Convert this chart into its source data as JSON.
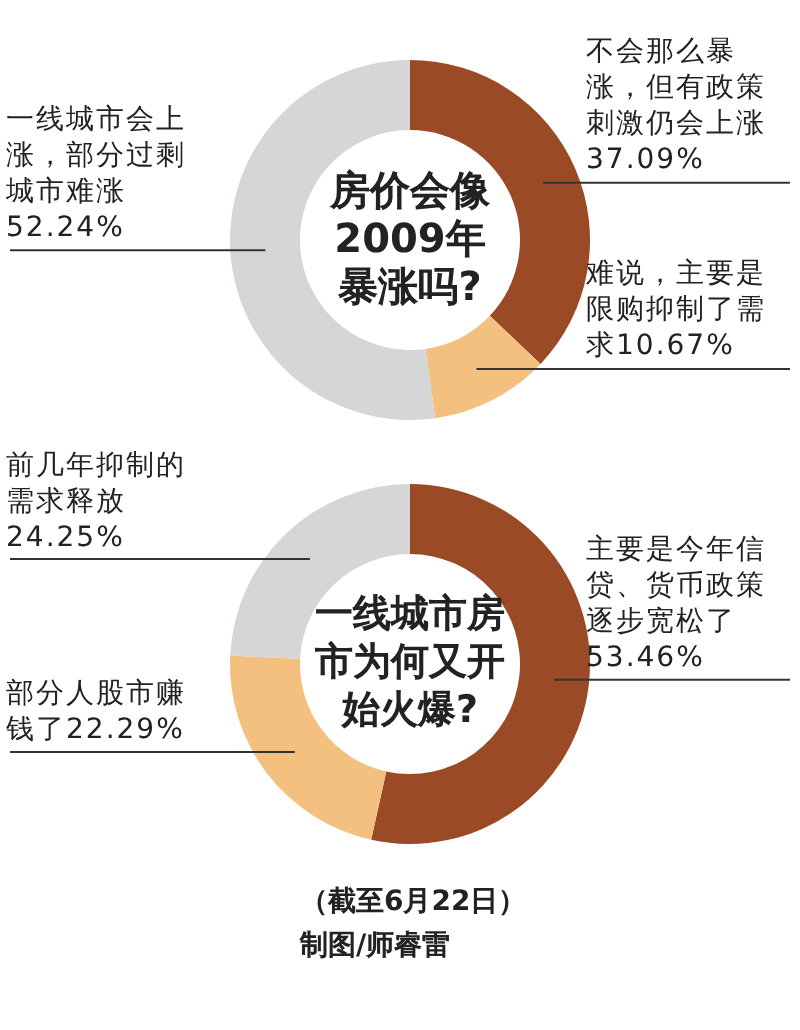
{
  "chart_data": [
    {
      "type": "donut",
      "title": "房价会像2009年暴涨吗?",
      "categories": [
        "不会那么暴涨，但有政策刺激仍会上涨",
        "难说，主要是限购抑制了需求",
        "一线城市会上涨，部分过剩城市难涨"
      ],
      "values": [
        37.09,
        10.67,
        52.24
      ],
      "value_labels": [
        "37.09%",
        "10.67%",
        "52.24%"
      ],
      "colors": [
        "#9b4a26",
        "#f3c07f",
        "#d5d7d7"
      ]
    },
    {
      "type": "donut",
      "title": "一线城市房市为何又开始火爆?",
      "categories": [
        "主要是今年信贷、货币政策逐步宽松了",
        "部分人股市赚钱了",
        "前几年抑制的需求释放"
      ],
      "values": [
        53.46,
        22.29,
        24.25
      ],
      "value_labels": [
        "53.46%",
        "22.29%",
        "24.25%"
      ],
      "colors": [
        "#9b4a26",
        "#f3c07f",
        "#d5d7d7"
      ],
      "annotations": [
        "（截至6月22日）",
        "制图/师睿雷"
      ]
    }
  ]
}
